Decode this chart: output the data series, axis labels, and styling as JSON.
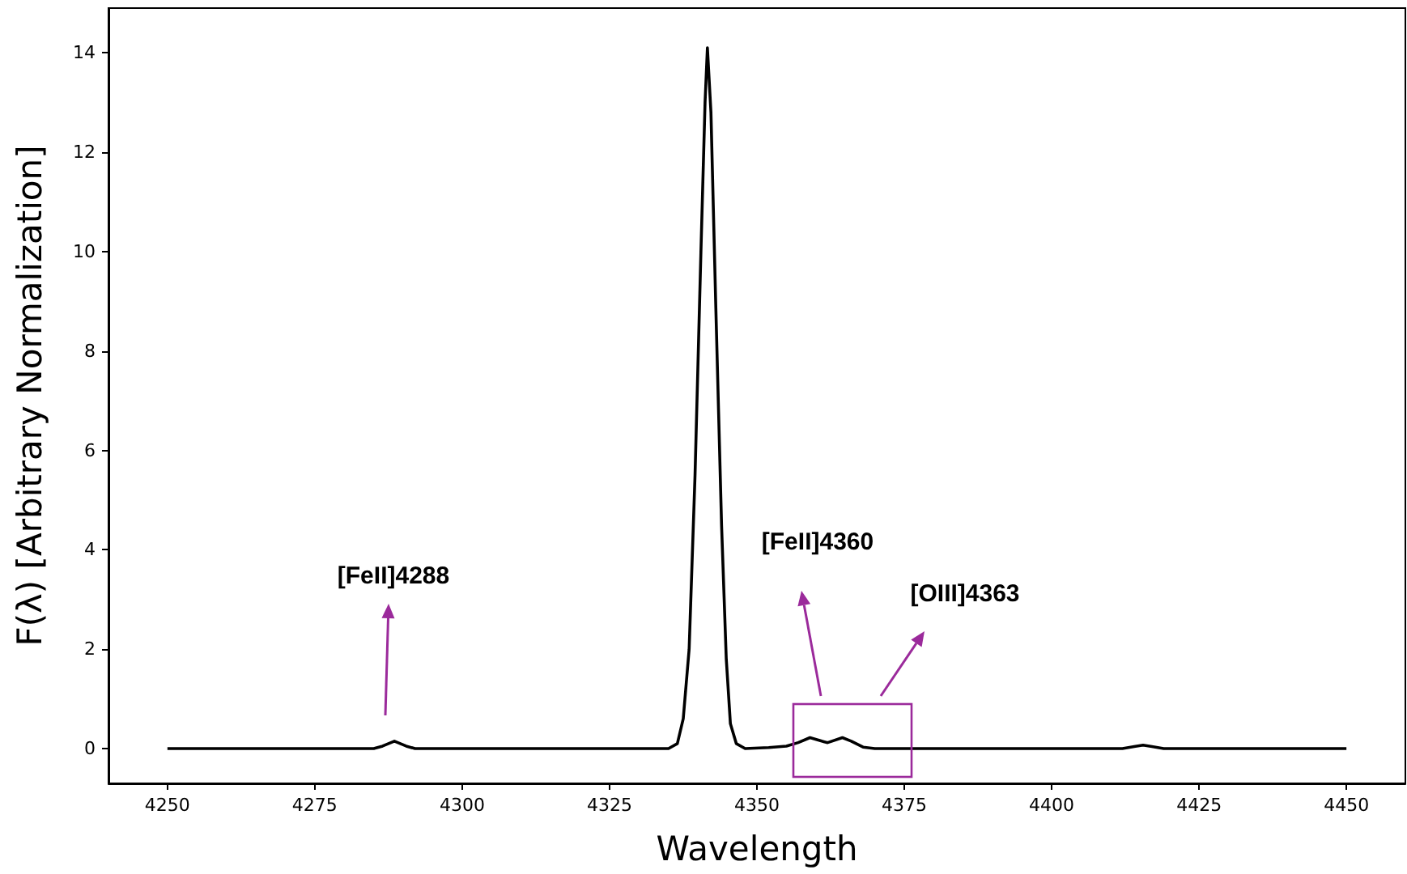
{
  "chart_data": {
    "type": "line",
    "xlabel": "Wavelength",
    "ylabel": "F(λ) [Arbitrary Normalization]",
    "x": [
      4250,
      4285,
      4286.5,
      4288.5,
      4290.5,
      4292,
      4335,
      4336.5,
      4337.5,
      4338.5,
      4339.5,
      4340.5,
      4341.2,
      4341.6,
      4342.2,
      4343,
      4344,
      4344.8,
      4345.5,
      4346.5,
      4348,
      4352,
      4355,
      4357,
      4359,
      4361,
      4362,
      4364.5,
      4366,
      4368,
      4370,
      4412,
      4414,
      4415.5,
      4417,
      4419,
      4450
    ],
    "series": [
      {
        "color": "#000000",
        "values": [
          0,
          0,
          0.05,
          0.15,
          0.05,
          0,
          0,
          0.1,
          0.6,
          2,
          5.5,
          10,
          13,
          14.1,
          12.8,
          9,
          4.5,
          1.8,
          0.5,
          0.1,
          0,
          0.02,
          0.05,
          0.12,
          0.22,
          0.15,
          0.12,
          0.22,
          0.15,
          0.03,
          0,
          0,
          0.04,
          0.07,
          0.04,
          0,
          0
        ]
      }
    ],
    "xlim": [
      4240,
      4460
    ],
    "xticks": [
      4250,
      4275,
      4300,
      4325,
      4350,
      4375,
      4400,
      4425,
      4450
    ],
    "ylim": [
      -0.7,
      14.9
    ],
    "yticks": [
      0,
      2,
      4,
      6,
      8,
      10,
      12,
      14
    ],
    "annotations": [
      "[FeII]4288",
      "[FeII]4360",
      "[OIII]4363"
    ],
    "grid": false,
    "marker": "none",
    "line_style": "solid"
  }
}
